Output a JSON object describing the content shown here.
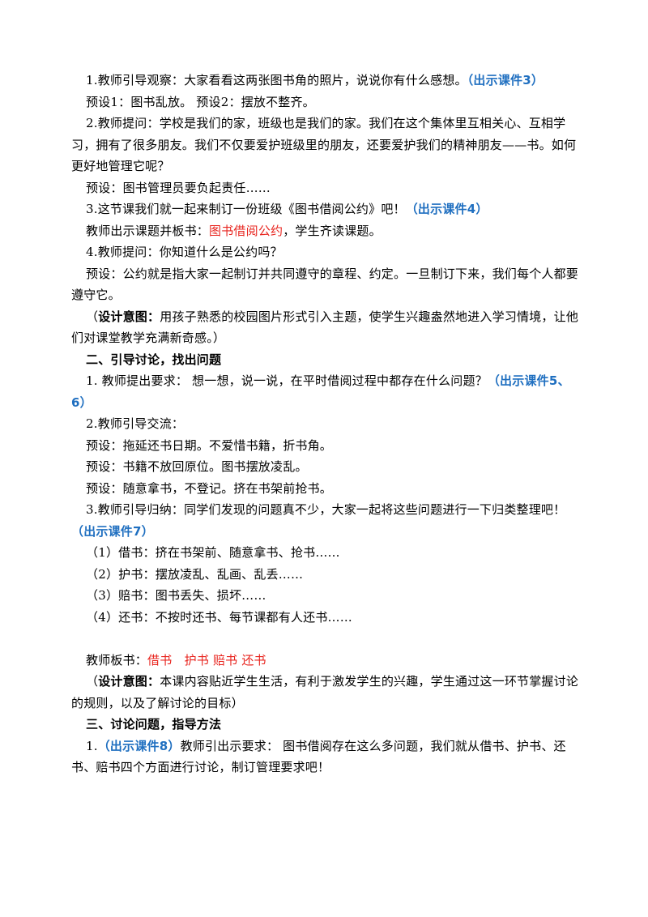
{
  "paragraphs": [
    [
      "1.教师引导观察：大家看看这两张图书角的照片，说说你有什么感想。",
      "（出示课件3）"
    ],
    [
      "预设1：图书乱放。 预设2：摆放不整齐。"
    ],
    [
      "2.教师提问：学校是我们的家，班级也是我们的家。我们在这个集体里互相关心、互相学习，拥有了很多朋友。我们不仅要爱护班级里的朋友，还要爱护我们的精神朋友——书。如何更好地管理它呢？"
    ],
    [
      "预设：图书管理员要负起责任……"
    ],
    [
      "3.这节课我们就一起来制订一份班级《图书借阅公约》吧！",
      "（出示课件4）"
    ],
    [
      "教师出示课题并板书：",
      "图书借阅公约",
      "，学生齐读课题。"
    ],
    [
      "4.教师提问：你知道什么是公约吗？"
    ],
    [
      "预设：公约就是指大家一起制订并共同遵守的章程、约定。一旦制订下来，我们每个人都要遵守它。"
    ],
    [
      "（",
      "设计意图：",
      "用孩子熟悉的校园图片形式引入主题，使学生兴趣盎然地进入学习情境，让他们对课堂教学充满新奇感。）"
    ],
    [
      "二、引导讨论，找出问题"
    ],
    [
      "1. 教师提出要求： 想一想，说一说，在平时借阅过程中都存在什么问题？",
      "（出示课件5、6）"
    ],
    [
      "2.教师引导交流："
    ],
    [
      "预设：拖延还书日期。不爱惜书籍，折书角。"
    ],
    [
      "预设：书籍不放回原位。图书摆放凌乱。"
    ],
    [
      "预设：随意拿书，不登记。挤在书架前抢书。"
    ],
    [
      "3.教师引导归纳：同学们发现的问题真不少，大家一起将这些问题进行一下归类整理吧！",
      "（出示课件7）"
    ],
    [
      "（1）借书：挤在书架前、随意拿书、抢书……"
    ],
    [
      "（2）护书：摆放凌乱、乱画、乱丢……"
    ],
    [
      "（3）赔书：图书丢失、损坏……"
    ],
    [
      "（4）还书：不按时还书、每节课都有人还书……"
    ],
    [
      "教师板书：",
      "借书　护书 赔书 还书"
    ],
    [
      "（",
      "设计意图：",
      "本课内容贴近学生生活，有利于激发学生的兴趣，学生通过这一环节掌握讨论的规则，以及了解讨论的目标）"
    ],
    [
      "三、讨论问题，指导方法"
    ],
    [
      "1.",
      "（出示课件8）",
      "教师引出示要求： 图书借阅存在这么多问题，我们就从借书、护书、还书、赔书四个方面进行讨论，制订管理要求吧！"
    ]
  ]
}
